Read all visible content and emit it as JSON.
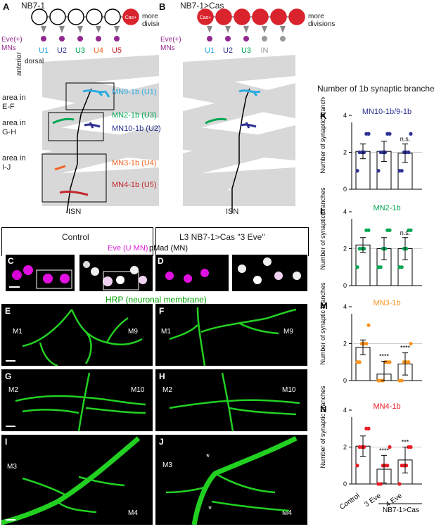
{
  "panels": {
    "A": "A",
    "B": "B",
    "C": "C",
    "D": "D",
    "E": "E",
    "F": "F",
    "G": "G",
    "H": "H",
    "I": "I",
    "J": "J",
    "K": "K",
    "L": "L",
    "M": "M",
    "N": "N"
  },
  "lineage_a": {
    "title": "NB7-1",
    "cas_label": "Cas+",
    "more": "more",
    "divisions": "divisions",
    "eve": "Eve(+)",
    "mns": "MNs",
    "units": [
      "U1",
      "U2",
      "U3",
      "U4",
      "U5"
    ],
    "in_label": "IN"
  },
  "lineage_b": {
    "title": "NB7-1>Cas",
    "cas_label": "Cas+",
    "more": "more",
    "divisions": "divisions",
    "eve": "Eve(+)",
    "mns": "MNs",
    "units": [
      "U1",
      "U2",
      "U3"
    ],
    "in_label": "IN"
  },
  "schematic": {
    "dorsal": "dorsal",
    "anterior": "anterior",
    "isn": "ISN",
    "area_ef": [
      "area in",
      "E-F"
    ],
    "area_gh": [
      "area in",
      "G-H"
    ],
    "area_ij": [
      "area in",
      "I-J"
    ],
    "mn_labels": [
      "MN9-1b (U1)",
      "MN2-1b (U3)",
      "MN10-1b (U2)",
      "MN3-1b (U4)",
      "MN4-1b (U5)"
    ],
    "colors": {
      "U1": "#29abe2",
      "U2": "#2e3192",
      "U3": "#00a651",
      "U4": "#f26522",
      "U5": "#c1272d",
      "IN": "#999999",
      "purple": "#92278f",
      "red": "#d9232d"
    }
  },
  "micro": {
    "control": "Control",
    "mutant": "L3 NB7-1>Cas   \"3 Eve\"",
    "eve_label": "Eve (U MN)",
    "pmad_label": "pMad (MN)",
    "hrp_label": "HRP (neuronal membrane)",
    "muscles": {
      "e": [
        "M1",
        "M9"
      ],
      "f": [
        "M1",
        "M9"
      ],
      "g": [
        "M2",
        "M10"
      ],
      "h": [
        "M2",
        "M10"
      ],
      "i": [
        "M3",
        "M4"
      ],
      "j": [
        "M3",
        "M4"
      ]
    },
    "asterisk": "*"
  },
  "charts_title": "Number of 1b synaptic branches",
  "chart_data": [
    {
      "type": "bar",
      "title": "MN10-1b/9-1b",
      "color": "#2e3192",
      "categories": [
        "Control",
        "3 Eve",
        "4 Eve"
      ],
      "values": [
        2.05,
        2.05,
        1.95
      ],
      "errors": [
        0.4,
        0.55,
        0.5
      ],
      "significance": [
        "",
        "",
        "n.s."
      ],
      "ylim": [
        0,
        4
      ],
      "ylabel": "Number of synaptic branches",
      "yticks": [
        "0",
        "2",
        "4"
      ]
    },
    {
      "type": "bar",
      "title": "MN2-1b",
      "color": "#00a651",
      "categories": [
        "Control",
        "3 Eve",
        "4 Eve"
      ],
      "values": [
        2.2,
        2.0,
        2.0
      ],
      "errors": [
        0.4,
        0.6,
        0.6
      ],
      "significance": [
        "",
        "",
        "n.s."
      ],
      "ylim": [
        0,
        4
      ],
      "ylabel": "Number of synaptic branches",
      "yticks": [
        "0",
        "2",
        "4"
      ]
    },
    {
      "type": "bar",
      "title": "MN3-1b",
      "color": "#f7941d",
      "categories": [
        "Control",
        "3 Eve",
        "4 Eve"
      ],
      "values": [
        1.8,
        0.35,
        0.9
      ],
      "errors": [
        0.4,
        0.7,
        0.6
      ],
      "significance": [
        "",
        "****",
        "****"
      ],
      "ylim": [
        0,
        4
      ],
      "ylabel": "Number of synaptic branches",
      "yticks": [
        "0",
        "2",
        "4"
      ]
    },
    {
      "type": "bar",
      "title": "MN4-1b",
      "color": "#ed1c24",
      "categories": [
        "Control",
        "3 Eve",
        "4 Eve"
      ],
      "values": [
        2.05,
        0.8,
        1.3
      ],
      "errors": [
        0.55,
        0.75,
        0.7
      ],
      "significance": [
        "",
        "****",
        "***"
      ],
      "ylim": [
        0,
        4
      ],
      "ylabel": "Number of synaptic branches",
      "yticks": [
        "0",
        "2",
        "4"
      ],
      "xgroup": "NB7-1>Cas"
    }
  ]
}
